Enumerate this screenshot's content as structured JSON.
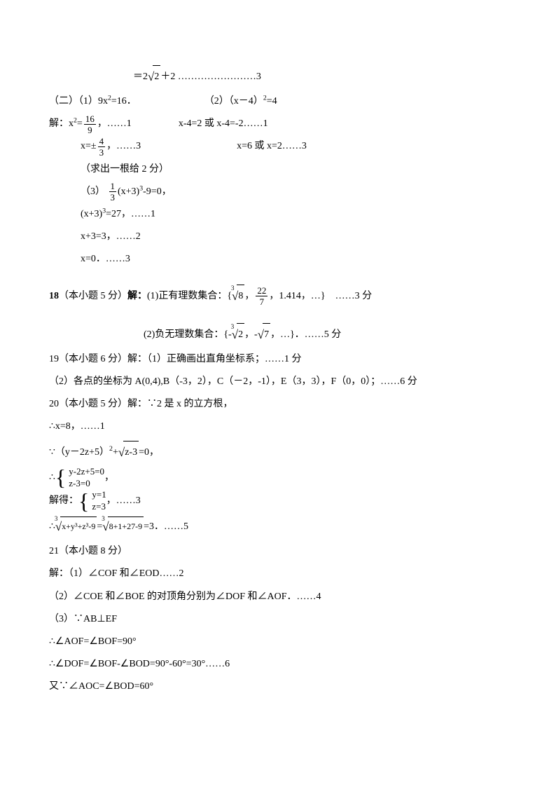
{
  "l01_a": "＝2",
  "l01_sqrt": "2",
  "l01_b": "＋2  ……………………3",
  "l02_a": "（二）（1）9x",
  "l02_b": "=16．",
  "l02_c": "（2）（x－4）",
  "l02_d": "=4",
  "l03_a": "解：x",
  "l03_b": "=",
  "l03_fn": "16",
  "l03_fd": "9",
  "l03_c": "，……1",
  "l03_d": "x-4=2 或 x-4=-2……1",
  "l04_a": "x=±",
  "l04_fn": "4",
  "l04_fd": "3",
  "l04_b": "，……3",
  "l04_c": "x=6 或 x=2……3",
  "l05": "（求出一根给 2 分）",
  "l06_a": "（3）",
  "l06_fn": "1",
  "l06_fd": "3",
  "l06_b": "(x+3)",
  "l06_c": "-9=0，",
  "l07_a": "(x+3)",
  "l07_b": "=27，……1",
  "l08": "x+3=3，……2",
  "l09": "x=0．……3",
  "l10_a": "18",
  "l10_b": "（本小题 5 分）",
  "l10_c": "解：",
  "l10_d": "(1)正有理数集合：{",
  "l10_sqrtidx": "3",
  "l10_sqrt": "8",
  "l10_e": "，",
  "l10_fn": "22",
  "l10_fd": "7",
  "l10_f": "，1.414，…}　……3 分",
  "l11_a": "(2)负无理数集合：{-",
  "l11_sqrtidx": "3",
  "l11_sqrt1": "2",
  "l11_b": "，-",
  "l11_sqrt2": "7",
  "l11_c": "，…}．……5 分",
  "l12": "19（本小题 6 分）解：（1）正确画出直角坐标系；……1 分",
  "l13": "（2）各点的坐标为 A(0,4),B（-3，2），C（－2，-1），E（3，3），F（0，0）；……6 分",
  "l14": "20（本小题 5 分）解：∵2 是 x 的立方根，",
  "l15": "∴x=8，……1",
  "l16_a": "∵（y－2z+5）",
  "l16_b": "+",
  "l16_sqrt": "z-3",
  "l16_c": "=0，",
  "l17_a": "∴",
  "l17_r1": "y-2z+5=0",
  "l17_r2": "z-3=0",
  "l17_b": "，",
  "l18_a": "解得：",
  "l18_r1": "y=1",
  "l18_r2": "z=3",
  "l18_b": "，……3",
  "l19_a": "∴",
  "l19_idx": "3",
  "l19_s1": "x+y³+z³-9",
  "l19_b": "=",
  "l19_s2": "8+1+27-9",
  "l19_c": "=3．……5",
  "l20": "21（本小题 8 分）",
  "l21": "解：（1）∠COF 和∠EOD……2",
  "l22": "（2）∠COE 和∠BOE 的对顶角分别为∠DOF 和∠AOF．……4",
  "l23": "（3）∵AB⊥EF",
  "l24": "∴∠AOF=∠BOF=90°",
  "l25": "∴∠DOF=∠BOF-∠BOD=90°-60°=30°……6",
  "l26": "又∵∠AOC=∠BOD=60°"
}
